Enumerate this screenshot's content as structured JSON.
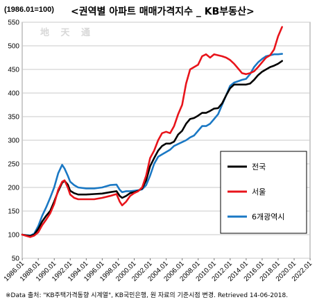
{
  "header": {
    "base_label": "(1986.01=100)",
    "title": "<권역별 아파트 매매가격지수 _ KB부동산>",
    "watermark": "地 天 通"
  },
  "footer": {
    "source": "※Data 출처: \"KB주택가격동향 시계열\", KB국민은행, 원 자료의 기준시점 변경. Retrieved 14-06-2018."
  },
  "chart_data": {
    "type": "line",
    "title": "<권역별 아파트 매매가격지수 _ KB부동산>",
    "ylabel": "(1986.01=100)",
    "xlabel": "",
    "xlim": [
      1986.0,
      2022.0
    ],
    "ylim": [
      50,
      550
    ],
    "yticks": [
      50,
      100,
      150,
      200,
      250,
      300,
      350,
      400,
      450,
      500,
      550
    ],
    "xticks": [
      "1986.01",
      "1988.01",
      "1990.01",
      "1992.01",
      "1994.01",
      "1996.01",
      "1998.01",
      "2000.01",
      "2002.01",
      "2004.01",
      "2006.01",
      "2008.01",
      "2010.01",
      "2012.01",
      "2014.01",
      "2016.01",
      "2018.01",
      "2020.01",
      "2022.01"
    ],
    "grid": true,
    "legend_position": "bottom-right",
    "series": [
      {
        "name": "전국",
        "color": "#000000",
        "points": [
          [
            1986.0,
            100
          ],
          [
            1987.0,
            97
          ],
          [
            1987.5,
            100
          ],
          [
            1988.0,
            112
          ],
          [
            1988.5,
            128
          ],
          [
            1989.0,
            140
          ],
          [
            1989.5,
            150
          ],
          [
            1990.0,
            170
          ],
          [
            1990.5,
            192
          ],
          [
            1991.0,
            210
          ],
          [
            1991.3,
            214
          ],
          [
            1991.7,
            206
          ],
          [
            1992.0,
            193
          ],
          [
            1992.5,
            188
          ],
          [
            1993.0,
            185
          ],
          [
            1994.0,
            185
          ],
          [
            1995.0,
            186
          ],
          [
            1996.0,
            187
          ],
          [
            1997.0,
            190
          ],
          [
            1997.8,
            192
          ],
          [
            1998.2,
            182
          ],
          [
            1998.5,
            178
          ],
          [
            1999.0,
            182
          ],
          [
            1999.5,
            188
          ],
          [
            2000.0,
            190
          ],
          [
            2000.5,
            193
          ],
          [
            2001.0,
            198
          ],
          [
            2001.5,
            215
          ],
          [
            2002.0,
            245
          ],
          [
            2002.5,
            262
          ],
          [
            2003.0,
            278
          ],
          [
            2003.5,
            288
          ],
          [
            2004.0,
            293
          ],
          [
            2004.5,
            293
          ],
          [
            2005.0,
            297
          ],
          [
            2005.5,
            312
          ],
          [
            2006.0,
            320
          ],
          [
            2006.5,
            335
          ],
          [
            2007.0,
            345
          ],
          [
            2007.5,
            347
          ],
          [
            2008.0,
            352
          ],
          [
            2008.5,
            358
          ],
          [
            2009.0,
            358
          ],
          [
            2009.5,
            362
          ],
          [
            2010.0,
            367
          ],
          [
            2010.5,
            368
          ],
          [
            2011.0,
            378
          ],
          [
            2011.5,
            395
          ],
          [
            2012.0,
            410
          ],
          [
            2012.5,
            418
          ],
          [
            2013.0,
            418
          ],
          [
            2014.0,
            418
          ],
          [
            2014.5,
            420
          ],
          [
            2015.0,
            428
          ],
          [
            2015.5,
            438
          ],
          [
            2016.0,
            445
          ],
          [
            2016.5,
            450
          ],
          [
            2017.0,
            455
          ],
          [
            2017.5,
            458
          ],
          [
            2018.0,
            462
          ],
          [
            2018.5,
            468
          ]
        ]
      },
      {
        "name": "서울",
        "color": "#e8141b",
        "points": [
          [
            1986.0,
            100
          ],
          [
            1987.0,
            95
          ],
          [
            1987.5,
            98
          ],
          [
            1988.0,
            105
          ],
          [
            1988.5,
            120
          ],
          [
            1989.0,
            132
          ],
          [
            1989.5,
            145
          ],
          [
            1990.0,
            165
          ],
          [
            1990.5,
            195
          ],
          [
            1991.0,
            212
          ],
          [
            1991.3,
            215
          ],
          [
            1991.7,
            200
          ],
          [
            1992.0,
            185
          ],
          [
            1992.5,
            178
          ],
          [
            1993.0,
            175
          ],
          [
            1994.0,
            175
          ],
          [
            1995.0,
            175
          ],
          [
            1996.0,
            178
          ],
          [
            1997.0,
            182
          ],
          [
            1997.8,
            186
          ],
          [
            1998.2,
            170
          ],
          [
            1998.5,
            162
          ],
          [
            1999.0,
            170
          ],
          [
            1999.5,
            182
          ],
          [
            2000.0,
            188
          ],
          [
            2000.5,
            192
          ],
          [
            2001.0,
            200
          ],
          [
            2001.5,
            225
          ],
          [
            2002.0,
            262
          ],
          [
            2002.5,
            278
          ],
          [
            2003.0,
            300
          ],
          [
            2003.5,
            315
          ],
          [
            2004.0,
            318
          ],
          [
            2004.5,
            315
          ],
          [
            2005.0,
            330
          ],
          [
            2005.5,
            355
          ],
          [
            2006.0,
            375
          ],
          [
            2006.5,
            420
          ],
          [
            2007.0,
            450
          ],
          [
            2007.5,
            455
          ],
          [
            2008.0,
            460
          ],
          [
            2008.5,
            478
          ],
          [
            2009.0,
            482
          ],
          [
            2009.5,
            475
          ],
          [
            2010.0,
            482
          ],
          [
            2010.5,
            480
          ],
          [
            2011.0,
            478
          ],
          [
            2011.5,
            475
          ],
          [
            2012.0,
            470
          ],
          [
            2012.5,
            462
          ],
          [
            2013.0,
            452
          ],
          [
            2013.5,
            442
          ],
          [
            2014.0,
            440
          ],
          [
            2014.5,
            442
          ],
          [
            2015.0,
            446
          ],
          [
            2015.5,
            455
          ],
          [
            2016.0,
            465
          ],
          [
            2016.5,
            475
          ],
          [
            2017.0,
            480
          ],
          [
            2017.5,
            492
          ],
          [
            2018.0,
            520
          ],
          [
            2018.5,
            540
          ]
        ]
      },
      {
        "name": "6개광역시",
        "color": "#1a78c4",
        "points": [
          [
            1986.0,
            100
          ],
          [
            1987.0,
            98
          ],
          [
            1987.5,
            102
          ],
          [
            1988.0,
            118
          ],
          [
            1988.5,
            140
          ],
          [
            1989.0,
            158
          ],
          [
            1989.5,
            178
          ],
          [
            1990.0,
            200
          ],
          [
            1990.5,
            230
          ],
          [
            1991.0,
            248
          ],
          [
            1991.3,
            240
          ],
          [
            1991.7,
            225
          ],
          [
            1992.0,
            212
          ],
          [
            1992.5,
            205
          ],
          [
            1993.0,
            200
          ],
          [
            1994.0,
            198
          ],
          [
            1995.0,
            198
          ],
          [
            1996.0,
            200
          ],
          [
            1997.0,
            205
          ],
          [
            1997.8,
            206
          ],
          [
            1998.2,
            195
          ],
          [
            1998.5,
            190
          ],
          [
            1999.0,
            192
          ],
          [
            1999.5,
            192
          ],
          [
            2000.0,
            193
          ],
          [
            2000.5,
            194
          ],
          [
            2001.0,
            196
          ],
          [
            2001.5,
            205
          ],
          [
            2002.0,
            225
          ],
          [
            2002.5,
            250
          ],
          [
            2003.0,
            265
          ],
          [
            2003.5,
            270
          ],
          [
            2004.0,
            275
          ],
          [
            2004.5,
            280
          ],
          [
            2005.0,
            288
          ],
          [
            2005.5,
            292
          ],
          [
            2006.0,
            296
          ],
          [
            2006.5,
            300
          ],
          [
            2007.0,
            306
          ],
          [
            2007.5,
            310
          ],
          [
            2008.0,
            320
          ],
          [
            2008.5,
            330
          ],
          [
            2009.0,
            330
          ],
          [
            2009.5,
            335
          ],
          [
            2010.0,
            345
          ],
          [
            2010.5,
            355
          ],
          [
            2011.0,
            375
          ],
          [
            2011.5,
            395
          ],
          [
            2012.0,
            415
          ],
          [
            2012.5,
            422
          ],
          [
            2013.0,
            425
          ],
          [
            2013.5,
            428
          ],
          [
            2014.0,
            430
          ],
          [
            2014.5,
            440
          ],
          [
            2015.0,
            455
          ],
          [
            2015.5,
            465
          ],
          [
            2016.0,
            472
          ],
          [
            2016.5,
            478
          ],
          [
            2017.0,
            480
          ],
          [
            2017.5,
            482
          ],
          [
            2018.0,
            482
          ],
          [
            2018.5,
            483
          ]
        ]
      }
    ]
  }
}
